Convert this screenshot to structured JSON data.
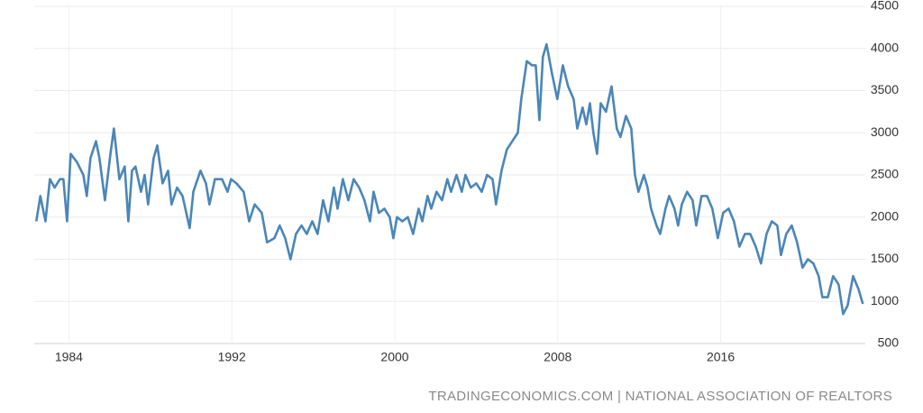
{
  "chart_data": {
    "type": "line",
    "source": "TRADINGECONOMICS.COM | NATIONAL ASSOCIATION OF REALTORS",
    "xlim": [
      1982.3,
      2023.1
    ],
    "xticks": [
      1984,
      1992,
      2000,
      2008,
      2016
    ],
    "ylim": [
      500,
      4500
    ],
    "yticks": [
      500,
      1000,
      1500,
      2000,
      2500,
      3000,
      3500,
      4000,
      4500
    ],
    "grid": true,
    "x": [
      1982.4,
      1982.6,
      1982.85,
      1983.07,
      1983.3,
      1983.56,
      1983.73,
      1983.91,
      1984.09,
      1984.4,
      1984.71,
      1984.88,
      1985.06,
      1985.33,
      1985.5,
      1985.77,
      1986.04,
      1986.21,
      1986.48,
      1986.74,
      1986.92,
      1987.1,
      1987.27,
      1987.54,
      1987.72,
      1987.89,
      1988.16,
      1988.34,
      1988.6,
      1988.87,
      1989.04,
      1989.31,
      1989.58,
      1989.93,
      1990.11,
      1990.46,
      1990.73,
      1990.9,
      1991.17,
      1991.52,
      1991.79,
      1991.96,
      1992.23,
      1992.58,
      1992.85,
      1993.12,
      1993.47,
      1993.73,
      1994.09,
      1994.35,
      1994.62,
      1994.88,
      1995.15,
      1995.42,
      1995.68,
      1995.95,
      1996.21,
      1996.48,
      1996.74,
      1997.01,
      1997.19,
      1997.45,
      1997.72,
      1997.98,
      1998.25,
      1998.51,
      1998.78,
      1998.96,
      1999.22,
      1999.49,
      1999.75,
      1999.93,
      2000.11,
      2000.37,
      2000.64,
      2000.9,
      2001.17,
      2001.35,
      2001.61,
      2001.79,
      2002.05,
      2002.32,
      2002.58,
      2002.76,
      2003.03,
      2003.29,
      2003.47,
      2003.73,
      2004.0,
      2004.27,
      2004.53,
      2004.8,
      2004.97,
      2005.24,
      2005.5,
      2005.77,
      2006.04,
      2006.21,
      2006.48,
      2006.74,
      2006.92,
      2007.1,
      2007.27,
      2007.45,
      2007.72,
      2007.98,
      2008.25,
      2008.51,
      2008.78,
      2008.96,
      2009.22,
      2009.4,
      2009.58,
      2009.75,
      2009.93,
      2010.11,
      2010.37,
      2010.64,
      2010.9,
      2011.08,
      2011.35,
      2011.61,
      2011.79,
      2011.96,
      2012.23,
      2012.41,
      2012.58,
      2012.85,
      2013.03,
      2013.29,
      2013.47,
      2013.73,
      2013.91,
      2014.09,
      2014.35,
      2014.62,
      2014.8,
      2015.06,
      2015.33,
      2015.59,
      2015.86,
      2016.12,
      2016.39,
      2016.65,
      2016.92,
      2017.19,
      2017.45,
      2017.72,
      2017.98,
      2018.25,
      2018.51,
      2018.78,
      2018.96,
      2019.22,
      2019.49,
      2019.75,
      2020.02,
      2020.28,
      2020.55,
      2020.81,
      2020.99,
      2021.26,
      2021.52,
      2021.79,
      2022.01,
      2022.23,
      2022.5,
      2022.76,
      2022.98
    ],
    "series": [
      {
        "color": "#4a86b8",
        "values": [
          1950,
          2250,
          1950,
          2450,
          2350,
          2450,
          2450,
          1950,
          2750,
          2650,
          2500,
          2250,
          2700,
          2900,
          2700,
          2200,
          2750,
          3050,
          2450,
          2600,
          1950,
          2550,
          2600,
          2300,
          2500,
          2150,
          2700,
          2850,
          2400,
          2550,
          2150,
          2350,
          2250,
          1870,
          2300,
          2550,
          2400,
          2150,
          2450,
          2450,
          2300,
          2450,
          2400,
          2300,
          1950,
          2150,
          2050,
          1700,
          1750,
          1900,
          1750,
          1500,
          1800,
          1900,
          1800,
          1950,
          1800,
          2200,
          1950,
          2350,
          2100,
          2450,
          2200,
          2450,
          2350,
          2200,
          1950,
          2300,
          2050,
          2100,
          2000,
          1750,
          2000,
          1950,
          2000,
          1800,
          2100,
          1950,
          2250,
          2100,
          2300,
          2200,
          2450,
          2300,
          2500,
          2300,
          2500,
          2350,
          2400,
          2300,
          2500,
          2450,
          2150,
          2550,
          2800,
          2900,
          3000,
          3400,
          3850,
          3800,
          3800,
          3150,
          3900,
          4050,
          3700,
          3400,
          3800,
          3550,
          3400,
          3050,
          3300,
          3100,
          3350,
          3000,
          2750,
          3350,
          3250,
          3550,
          3050,
          2950,
          3200,
          3050,
          2500,
          2300,
          2500,
          2350,
          2100,
          1900,
          1800,
          2100,
          2250,
          2100,
          1900,
          2150,
          2300,
          2200,
          1900,
          2250,
          2250,
          2100,
          1750,
          2050,
          2100,
          1950,
          1650,
          1800,
          1800,
          1650,
          1450,
          1800,
          1950,
          1900,
          1550,
          1800,
          1900,
          1700,
          1400,
          1500,
          1450,
          1300,
          1050,
          1050,
          1300,
          1200,
          850,
          950,
          1300,
          1150,
          970
        ]
      }
    ]
  }
}
